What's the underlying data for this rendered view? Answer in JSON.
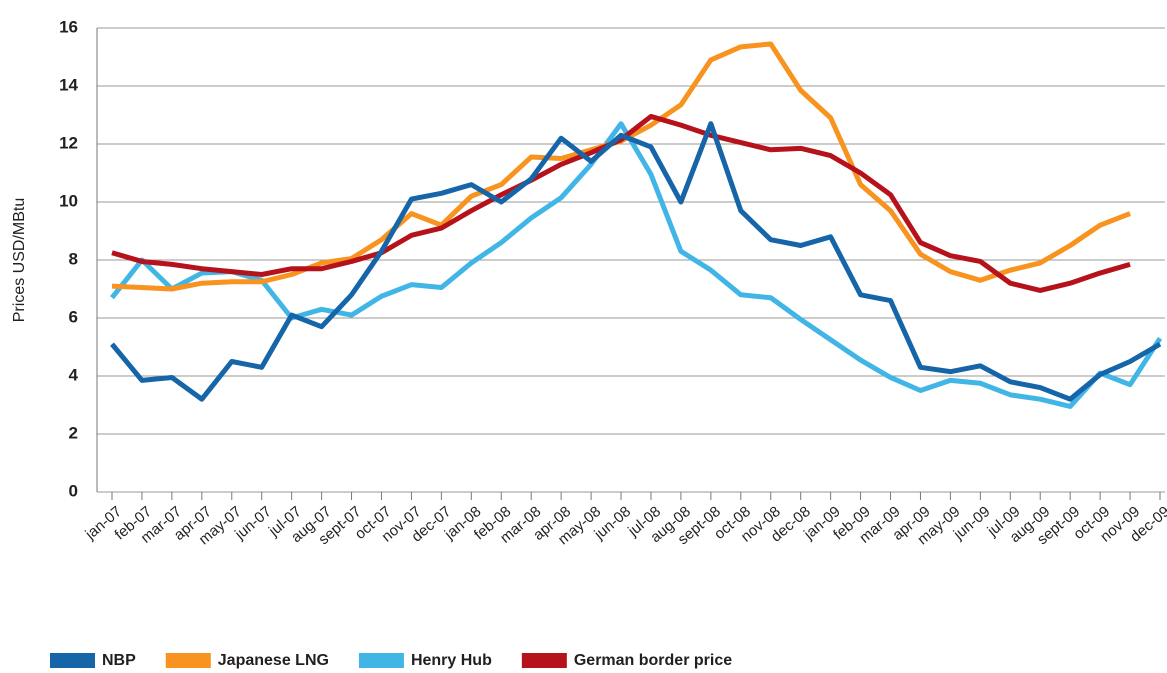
{
  "chart_data": {
    "type": "line",
    "y_label": "Prices USD/MBtu",
    "categories": [
      "jan-07",
      "feb-07",
      "mar-07",
      "apr-07",
      "may-07",
      "jun-07",
      "jul-07",
      "aug-07",
      "sept-07",
      "oct-07",
      "nov-07",
      "dec-07",
      "jan-08",
      "feb-08",
      "mar-08",
      "apr-08",
      "may-08",
      "jun-08",
      "jul-08",
      "aug-08",
      "sept-08",
      "oct-08",
      "nov-08",
      "dec-08",
      "jan-09",
      "feb-09",
      "mar-09",
      "apr-09",
      "may-09",
      "jun-09",
      "jul-09",
      "aug-09",
      "sept-09",
      "oct-09",
      "nov-09",
      "dec-09"
    ],
    "series": [
      {
        "name": "NBP",
        "color": "#1565a8",
        "values": [
          5.1,
          3.85,
          3.95,
          3.2,
          4.5,
          4.3,
          6.1,
          5.7,
          6.8,
          8.3,
          10.1,
          10.3,
          10.6,
          10.0,
          10.8,
          12.2,
          11.4,
          12.3,
          11.9,
          10.0,
          12.7,
          9.7,
          8.7,
          8.5,
          8.8,
          6.8,
          6.6,
          4.3,
          4.15,
          4.35,
          3.8,
          3.6,
          3.2,
          4.05,
          4.5,
          5.1
        ]
      },
      {
        "name": "Japanese LNG",
        "color": "#f7931e",
        "values": [
          7.1,
          7.05,
          7.0,
          7.2,
          7.25,
          7.25,
          7.5,
          7.9,
          8.05,
          8.7,
          9.6,
          9.2,
          10.2,
          10.6,
          11.55,
          11.5,
          11.8,
          12.1,
          12.65,
          13.35,
          14.9,
          15.35,
          15.45,
          13.85,
          12.9,
          10.6,
          9.7,
          8.2,
          7.6,
          7.3,
          7.65,
          7.9,
          8.5,
          9.2,
          9.6,
          null
        ]
      },
      {
        "name": "Henry Hub",
        "color": "#41b6e6",
        "values": [
          6.7,
          8.0,
          7.0,
          7.55,
          7.6,
          7.3,
          6.0,
          6.3,
          6.1,
          6.75,
          7.15,
          7.05,
          7.9,
          8.6,
          9.45,
          10.15,
          11.3,
          12.7,
          10.95,
          8.3,
          7.65,
          6.8,
          6.7,
          5.95,
          5.25,
          4.55,
          3.95,
          3.5,
          3.85,
          3.75,
          3.35,
          3.2,
          2.95,
          4.1,
          3.7,
          5.3
        ]
      },
      {
        "name": "German border price",
        "color": "#b5121b",
        "values": [
          8.25,
          7.95,
          7.85,
          7.7,
          7.6,
          7.5,
          7.7,
          7.7,
          7.95,
          8.25,
          8.85,
          9.1,
          9.7,
          10.25,
          10.75,
          11.3,
          11.7,
          12.15,
          12.95,
          12.65,
          12.3,
          12.05,
          11.8,
          11.85,
          11.6,
          11.0,
          10.25,
          8.6,
          8.15,
          7.95,
          7.2,
          6.95,
          7.2,
          7.55,
          7.85,
          null
        ]
      }
    ],
    "ylim": [
      0,
      16
    ],
    "yticks": [
      0,
      2,
      4,
      6,
      8,
      10,
      12,
      14,
      16
    ],
    "grid": true
  }
}
